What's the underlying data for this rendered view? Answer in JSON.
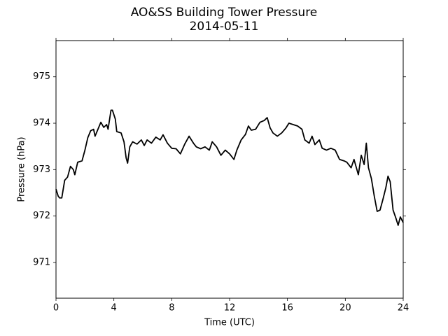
{
  "chart_data": {
    "type": "line",
    "title": "AO&SS Building Tower Pressure",
    "subtitle": "2014-05-11",
    "x_label": "Time (UTC)",
    "y_label": "Pressure (hPa)",
    "xlim": [
      0,
      24
    ],
    "xticks": [
      0,
      4,
      8,
      12,
      16,
      20,
      24
    ],
    "ylim": [
      970.23,
      975.78
    ],
    "yticks": [
      971,
      972,
      973,
      974,
      975
    ],
    "grid": false,
    "series": [
      {
        "color": "#000000",
        "x": [
          0,
          0.15,
          0.25,
          0.4,
          0.6,
          0.8,
          1.0,
          1.2,
          1.3,
          1.5,
          1.8,
          2.0,
          2.2,
          2.4,
          2.6,
          2.7,
          2.9,
          3.1,
          3.3,
          3.5,
          3.6,
          3.8,
          3.9,
          4.1,
          4.2,
          4.5,
          4.7,
          4.85,
          4.95,
          5.1,
          5.3,
          5.6,
          5.9,
          6.1,
          6.3,
          6.6,
          6.9,
          7.2,
          7.4,
          7.7,
          8.0,
          8.3,
          8.6,
          8.9,
          9.2,
          9.5,
          9.7,
          10.0,
          10.3,
          10.6,
          10.8,
          11.1,
          11.4,
          11.7,
          12.0,
          12.3,
          12.5,
          12.8,
          13.1,
          13.3,
          13.5,
          13.8,
          14.1,
          14.4,
          14.6,
          14.8,
          15.0,
          15.3,
          15.6,
          15.9,
          16.1,
          16.4,
          16.7,
          17.0,
          17.2,
          17.5,
          17.7,
          17.9,
          18.2,
          18.4,
          18.7,
          19.0,
          19.3,
          19.6,
          19.9,
          20.1,
          20.4,
          20.6,
          20.9,
          21.1,
          21.3,
          21.45,
          21.6,
          21.8,
          22.0,
          22.2,
          22.4,
          22.6,
          22.8,
          22.95,
          23.1,
          23.3,
          23.5,
          23.65,
          23.8,
          24.0
        ],
        "values": [
          972.58,
          972.43,
          972.39,
          972.39,
          972.77,
          972.84,
          973.07,
          973.0,
          972.89,
          973.16,
          973.19,
          973.42,
          973.69,
          973.84,
          973.87,
          973.72,
          973.87,
          974.02,
          973.91,
          973.97,
          973.87,
          974.28,
          974.28,
          974.09,
          973.82,
          973.79,
          973.6,
          973.25,
          973.14,
          973.49,
          973.6,
          973.55,
          973.64,
          973.52,
          973.64,
          973.57,
          973.7,
          973.64,
          973.75,
          973.57,
          973.46,
          973.45,
          973.34,
          973.55,
          973.72,
          973.57,
          973.49,
          973.45,
          973.49,
          973.42,
          973.6,
          973.49,
          973.31,
          973.42,
          973.34,
          973.22,
          973.42,
          973.64,
          973.76,
          973.94,
          973.85,
          973.87,
          974.02,
          974.06,
          974.12,
          973.9,
          973.79,
          973.72,
          973.79,
          973.9,
          974.0,
          973.97,
          973.94,
          973.87,
          973.64,
          973.57,
          973.72,
          973.54,
          973.64,
          973.46,
          973.42,
          973.46,
          973.42,
          973.22,
          973.19,
          973.16,
          973.04,
          973.22,
          972.89,
          973.31,
          973.11,
          973.57,
          973.04,
          972.81,
          972.43,
          972.1,
          972.13,
          972.36,
          972.61,
          972.86,
          972.74,
          972.13,
          971.95,
          971.8,
          971.98,
          971.86
        ]
      }
    ]
  }
}
